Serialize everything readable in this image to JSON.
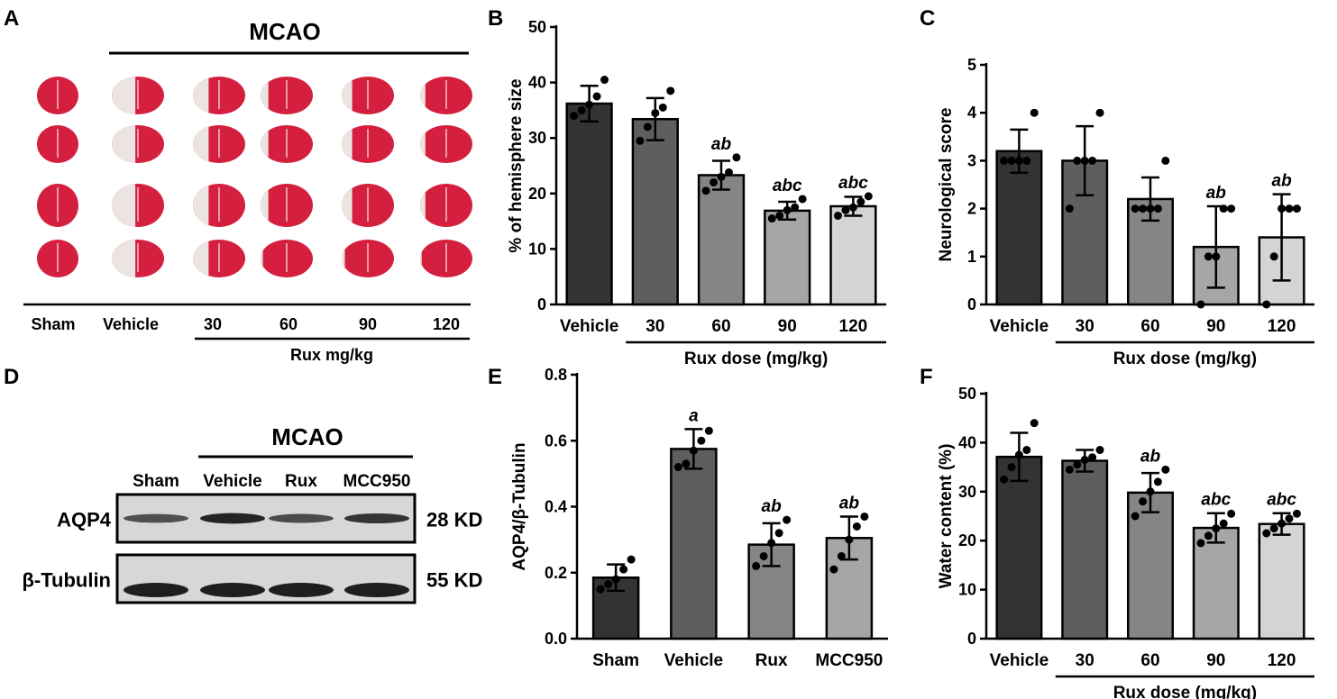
{
  "colors": {
    "bars": [
      "#333333",
      "#5e5e5e",
      "#858585",
      "#a6a6a6",
      "#d4d4d4"
    ],
    "tissue_red": "#d41f3e",
    "tissue_pale": "#ece4e0",
    "blot_band": "#1e1e1e"
  },
  "panel_a": {
    "label": "A",
    "header": "MCAO",
    "groups": [
      "Sham",
      "Vehicle",
      "30",
      "60",
      "90",
      "120"
    ],
    "dose_label": "Rux mg/kg"
  },
  "panel_d": {
    "label": "D",
    "header": "MCAO",
    "lanes": [
      "Sham",
      "Vehicle",
      "Rux",
      "MCC950"
    ],
    "rows": [
      {
        "protein": "AQP4",
        "size": "28 KD",
        "intensity": [
          0.55,
          0.95,
          0.6,
          0.8
        ]
      },
      {
        "protein": "β-Tubulin",
        "size": "55 KD",
        "intensity": [
          1,
          1,
          1,
          1
        ]
      }
    ]
  },
  "chart_data": [
    {
      "panel": "B",
      "type": "bar",
      "categories": [
        "Vehicle",
        "30",
        "60",
        "90",
        "120"
      ],
      "values": [
        36.2,
        33.4,
        23.3,
        16.9,
        17.7
      ],
      "errors": [
        3.2,
        3.8,
        2.6,
        1.6,
        1.7
      ],
      "points": [
        [
          34,
          35,
          36,
          37.5,
          40.5
        ],
        [
          29.5,
          32,
          34.5,
          35.5,
          38.5
        ],
        [
          20.5,
          22,
          23,
          23.8,
          26.5
        ],
        [
          15.5,
          16,
          17,
          17.5,
          19
        ],
        [
          16,
          17,
          17.5,
          18.5,
          19.5
        ]
      ],
      "sig": [
        "",
        "",
        "ab",
        "abc",
        "abc"
      ],
      "xlabel": "Rux dose (mg/kg)",
      "ylabel": "% of hemisphere size",
      "ylim": [
        0,
        50
      ],
      "yticks": [
        0,
        10,
        20,
        30,
        40,
        50
      ],
      "bracket_from": 1,
      "grid": false
    },
    {
      "panel": "C",
      "type": "bar",
      "categories": [
        "Vehicle",
        "30",
        "60",
        "90",
        "120"
      ],
      "values": [
        3.2,
        3.0,
        2.2,
        1.2,
        1.4
      ],
      "errors": [
        0.45,
        0.72,
        0.45,
        0.85,
        0.9
      ],
      "points": [
        [
          3,
          3,
          3,
          3,
          4
        ],
        [
          2,
          3,
          3,
          3,
          4
        ],
        [
          2,
          2,
          2,
          2,
          3
        ],
        [
          0,
          1,
          1,
          2,
          2
        ],
        [
          0,
          1,
          2,
          2,
          2
        ]
      ],
      "sig": [
        "",
        "",
        "",
        "ab",
        "ab"
      ],
      "xlabel": "Rux dose (mg/kg)",
      "ylabel": "Neurological score",
      "ylim": [
        0,
        5
      ],
      "yticks": [
        0,
        1,
        2,
        3,
        4,
        5
      ],
      "bracket_from": 1,
      "grid": false
    },
    {
      "panel": "E",
      "type": "bar",
      "categories": [
        "Sham",
        "Vehicle",
        "Rux",
        "MCC950"
      ],
      "values": [
        0.185,
        0.575,
        0.285,
        0.305
      ],
      "errors": [
        0.04,
        0.06,
        0.065,
        0.065
      ],
      "points": [
        [
          0.15,
          0.165,
          0.18,
          0.21,
          0.24
        ],
        [
          0.52,
          0.53,
          0.57,
          0.6,
          0.63
        ],
        [
          0.22,
          0.25,
          0.29,
          0.32,
          0.36
        ],
        [
          0.21,
          0.25,
          0.3,
          0.34,
          0.37
        ]
      ],
      "sig": [
        "",
        "a",
        "ab",
        "ab"
      ],
      "xlabel": "",
      "ylabel": "AQP4/β-Tubulin",
      "ylim": [
        0,
        0.8
      ],
      "yticks": [
        0.0,
        0.2,
        0.4,
        0.6,
        0.8
      ],
      "bracket_from": -1,
      "grid": false
    },
    {
      "panel": "F",
      "type": "bar",
      "categories": [
        "Vehicle",
        "30",
        "60",
        "90",
        "120"
      ],
      "values": [
        37.1,
        36.3,
        29.8,
        22.6,
        23.4
      ],
      "errors": [
        4.9,
        2.2,
        4.0,
        3.0,
        2.2
      ],
      "points": [
        [
          32.5,
          35,
          37.5,
          38.5,
          44
        ],
        [
          34.5,
          35.5,
          36.5,
          37,
          38.5
        ],
        [
          25,
          28,
          30,
          32,
          34.5
        ],
        [
          19.5,
          21,
          22.5,
          23.5,
          25.5
        ],
        [
          21.5,
          22.5,
          23.5,
          24.5,
          25.5
        ]
      ],
      "sig": [
        "",
        "",
        "ab",
        "abc",
        "abc"
      ],
      "xlabel": "Rux dose (mg/kg)",
      "ylabel": "Water content (%)",
      "ylim": [
        0,
        50
      ],
      "yticks": [
        0,
        10,
        20,
        30,
        40,
        50
      ],
      "bracket_from": 1,
      "grid": false
    }
  ]
}
